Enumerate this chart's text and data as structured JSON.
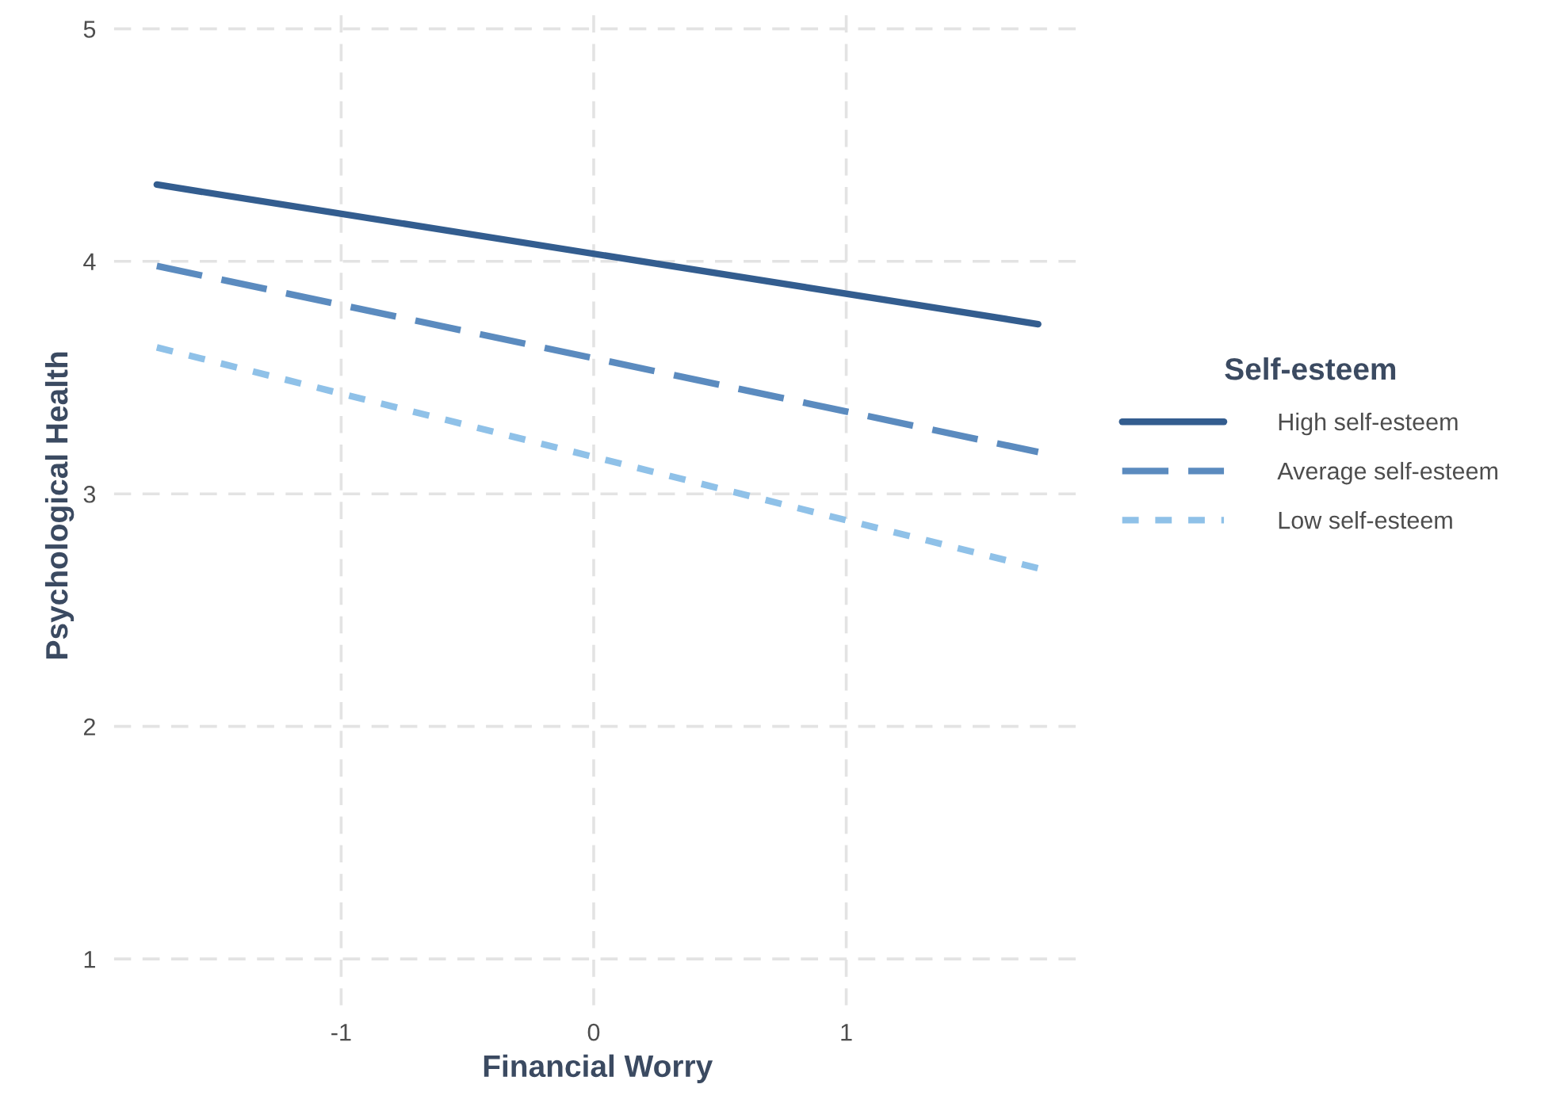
{
  "chart_data": {
    "type": "line",
    "xlabel": "Financial Worry",
    "ylabel": "Psychological Health",
    "legend_title": "Self-esteem",
    "x": [
      -1.73,
      1.76
    ],
    "series": [
      {
        "name": "High self-esteem",
        "color": "#335d8f",
        "values": [
          4.33,
          3.73
        ],
        "line_style": "solid"
      },
      {
        "name": "Average self-esteem",
        "color": "#5b8bbf",
        "values": [
          3.98,
          3.18
        ],
        "line_style": "dashed"
      },
      {
        "name": "Low self-esteem",
        "color": "#8fc1e8",
        "values": [
          3.63,
          2.68
        ],
        "line_style": "dotted"
      }
    ],
    "xlim": [
      -1.9,
      1.93
    ],
    "ylim": [
      0.8,
      5.1
    ],
    "xticks": [
      -1,
      0,
      1
    ],
    "yticks": [
      1,
      2,
      3,
      4,
      5
    ],
    "grid": true,
    "legend": "right",
    "marker": "none"
  }
}
